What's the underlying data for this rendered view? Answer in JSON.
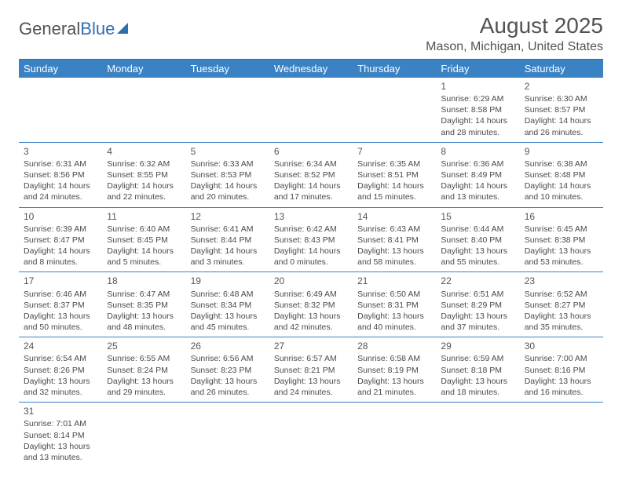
{
  "logo": {
    "part1": "General",
    "part2": "Blue"
  },
  "title": "August 2025",
  "location": "Mason, Michigan, United States",
  "colors": {
    "header_bg": "#3a82c4",
    "header_text": "#ffffff",
    "rule": "#2f6fb0",
    "body_text": "#4a4a4a"
  },
  "weekdays": [
    "Sunday",
    "Monday",
    "Tuesday",
    "Wednesday",
    "Thursday",
    "Friday",
    "Saturday"
  ],
  "weeks": [
    [
      null,
      null,
      null,
      null,
      null,
      {
        "n": "1",
        "sr": "6:29 AM",
        "ss": "8:58 PM",
        "dl": "14 hours and 28 minutes."
      },
      {
        "n": "2",
        "sr": "6:30 AM",
        "ss": "8:57 PM",
        "dl": "14 hours and 26 minutes."
      }
    ],
    [
      {
        "n": "3",
        "sr": "6:31 AM",
        "ss": "8:56 PM",
        "dl": "14 hours and 24 minutes."
      },
      {
        "n": "4",
        "sr": "6:32 AM",
        "ss": "8:55 PM",
        "dl": "14 hours and 22 minutes."
      },
      {
        "n": "5",
        "sr": "6:33 AM",
        "ss": "8:53 PM",
        "dl": "14 hours and 20 minutes."
      },
      {
        "n": "6",
        "sr": "6:34 AM",
        "ss": "8:52 PM",
        "dl": "14 hours and 17 minutes."
      },
      {
        "n": "7",
        "sr": "6:35 AM",
        "ss": "8:51 PM",
        "dl": "14 hours and 15 minutes."
      },
      {
        "n": "8",
        "sr": "6:36 AM",
        "ss": "8:49 PM",
        "dl": "14 hours and 13 minutes."
      },
      {
        "n": "9",
        "sr": "6:38 AM",
        "ss": "8:48 PM",
        "dl": "14 hours and 10 minutes."
      }
    ],
    [
      {
        "n": "10",
        "sr": "6:39 AM",
        "ss": "8:47 PM",
        "dl": "14 hours and 8 minutes."
      },
      {
        "n": "11",
        "sr": "6:40 AM",
        "ss": "8:45 PM",
        "dl": "14 hours and 5 minutes."
      },
      {
        "n": "12",
        "sr": "6:41 AM",
        "ss": "8:44 PM",
        "dl": "14 hours and 3 minutes."
      },
      {
        "n": "13",
        "sr": "6:42 AM",
        "ss": "8:43 PM",
        "dl": "14 hours and 0 minutes."
      },
      {
        "n": "14",
        "sr": "6:43 AM",
        "ss": "8:41 PM",
        "dl": "13 hours and 58 minutes."
      },
      {
        "n": "15",
        "sr": "6:44 AM",
        "ss": "8:40 PM",
        "dl": "13 hours and 55 minutes."
      },
      {
        "n": "16",
        "sr": "6:45 AM",
        "ss": "8:38 PM",
        "dl": "13 hours and 53 minutes."
      }
    ],
    [
      {
        "n": "17",
        "sr": "6:46 AM",
        "ss": "8:37 PM",
        "dl": "13 hours and 50 minutes."
      },
      {
        "n": "18",
        "sr": "6:47 AM",
        "ss": "8:35 PM",
        "dl": "13 hours and 48 minutes."
      },
      {
        "n": "19",
        "sr": "6:48 AM",
        "ss": "8:34 PM",
        "dl": "13 hours and 45 minutes."
      },
      {
        "n": "20",
        "sr": "6:49 AM",
        "ss": "8:32 PM",
        "dl": "13 hours and 42 minutes."
      },
      {
        "n": "21",
        "sr": "6:50 AM",
        "ss": "8:31 PM",
        "dl": "13 hours and 40 minutes."
      },
      {
        "n": "22",
        "sr": "6:51 AM",
        "ss": "8:29 PM",
        "dl": "13 hours and 37 minutes."
      },
      {
        "n": "23",
        "sr": "6:52 AM",
        "ss": "8:27 PM",
        "dl": "13 hours and 35 minutes."
      }
    ],
    [
      {
        "n": "24",
        "sr": "6:54 AM",
        "ss": "8:26 PM",
        "dl": "13 hours and 32 minutes."
      },
      {
        "n": "25",
        "sr": "6:55 AM",
        "ss": "8:24 PM",
        "dl": "13 hours and 29 minutes."
      },
      {
        "n": "26",
        "sr": "6:56 AM",
        "ss": "8:23 PM",
        "dl": "13 hours and 26 minutes."
      },
      {
        "n": "27",
        "sr": "6:57 AM",
        "ss": "8:21 PM",
        "dl": "13 hours and 24 minutes."
      },
      {
        "n": "28",
        "sr": "6:58 AM",
        "ss": "8:19 PM",
        "dl": "13 hours and 21 minutes."
      },
      {
        "n": "29",
        "sr": "6:59 AM",
        "ss": "8:18 PM",
        "dl": "13 hours and 18 minutes."
      },
      {
        "n": "30",
        "sr": "7:00 AM",
        "ss": "8:16 PM",
        "dl": "13 hours and 16 minutes."
      }
    ],
    [
      {
        "n": "31",
        "sr": "7:01 AM",
        "ss": "8:14 PM",
        "dl": "13 hours and 13 minutes."
      },
      null,
      null,
      null,
      null,
      null,
      null
    ]
  ],
  "labels": {
    "sunrise": "Sunrise:",
    "sunset": "Sunset:",
    "daylight": "Daylight:"
  }
}
